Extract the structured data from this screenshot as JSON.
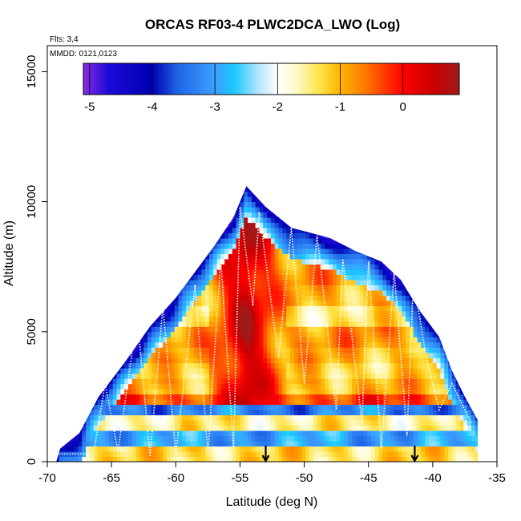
{
  "chart_data": {
    "type": "heatmap",
    "title": "ORCAS RF03-4 PLWC2DCA_LWO (Log)",
    "subtitle_flights": "Flts: 3,4",
    "subtitle_dates": "MMDD: 0121,0123",
    "xlabel": "Latitude (deg N)",
    "ylabel": "Altitude (m)",
    "xlim": [
      -70,
      -35
    ],
    "ylim": [
      0,
      16000
    ],
    "x_ticks": [
      -70,
      -65,
      -60,
      -55,
      -50,
      -45,
      -40,
      -35
    ],
    "y_ticks": [
      0,
      5000,
      10000,
      15000
    ],
    "colorbar": {
      "range": [
        -5.1,
        0.9
      ],
      "ticks": [
        -5,
        -4,
        -3,
        -2,
        -1,
        0
      ],
      "stops": [
        {
          "v": -5.1,
          "c": "#8a2be2"
        },
        {
          "v": -4.7,
          "c": "#1a0ad8"
        },
        {
          "v": -4.0,
          "c": "#0000b0"
        },
        {
          "v": -3.6,
          "c": "#1e64e6"
        },
        {
          "v": -3.0,
          "c": "#3ca0ff"
        },
        {
          "v": -2.7,
          "c": "#19c8ff"
        },
        {
          "v": -2.3,
          "c": "#b4e6ff"
        },
        {
          "v": -2.0,
          "c": "#ffffff"
        },
        {
          "v": -1.7,
          "c": "#fffac8"
        },
        {
          "v": -1.3,
          "c": "#ffe140"
        },
        {
          "v": -1.0,
          "c": "#ffb400"
        },
        {
          "v": -0.6,
          "c": "#ff7800"
        },
        {
          "v": 0.0,
          "c": "#ff0000"
        },
        {
          "v": 0.5,
          "c": "#c80000"
        },
        {
          "v": 0.9,
          "c": "#a01a1a"
        }
      ]
    },
    "envelope": [
      [
        -69.3,
        0
      ],
      [
        -69,
        500
      ],
      [
        -67.5,
        1100
      ],
      [
        -66,
        2500
      ],
      [
        -64,
        3800
      ],
      [
        -62,
        5200
      ],
      [
        -60,
        6300
      ],
      [
        -58.5,
        7300
      ],
      [
        -57,
        8300
      ],
      [
        -55.5,
        9400
      ],
      [
        -54.5,
        10600
      ],
      [
        -53,
        9800
      ],
      [
        -51,
        9000
      ],
      [
        -48,
        8600
      ],
      [
        -46,
        8100
      ],
      [
        -44,
        7700
      ],
      [
        -42.5,
        7000
      ],
      [
        -41,
        5800
      ],
      [
        -39.5,
        4800
      ],
      [
        -38.5,
        3500
      ],
      [
        -37.5,
        2500
      ],
      [
        -36.5,
        1600
      ],
      [
        -36.5,
        0
      ]
    ],
    "bands": [
      {
        "y": [
          0,
          700
        ],
        "base": -1.3
      },
      {
        "y": [
          700,
          1300
        ],
        "base": -3.0
      },
      {
        "y": [
          1300,
          1900
        ],
        "base": -1.5
      },
      {
        "y": [
          1900,
          2300
        ],
        "base": -3.3
      },
      {
        "y": [
          2300,
          2700
        ],
        "base": -0.3
      },
      {
        "y": [
          2700,
          3200
        ],
        "base": -1.0
      },
      {
        "y": [
          3200,
          3800
        ],
        "base": -1.2
      },
      {
        "y": [
          3800,
          4400
        ],
        "base": -1.0
      },
      {
        "y": [
          4400,
          5200
        ],
        "base": -0.8
      },
      {
        "y": [
          5200,
          6000
        ],
        "base": -1.4
      },
      {
        "y": [
          6000,
          6800
        ],
        "base": -1.0
      },
      {
        "y": [
          6800,
          7600
        ],
        "base": -0.8
      },
      {
        "y": [
          7600,
          8400
        ],
        "base": -0.7
      },
      {
        "y": [
          8400,
          9200
        ],
        "base": -1.6
      },
      {
        "y": [
          9200,
          10000
        ],
        "base": -1.2
      },
      {
        "y": [
          10000,
          10700
        ],
        "base": -0.9
      }
    ],
    "core": {
      "x": -54.5,
      "width": 1.5,
      "peak": 0.6
    },
    "flight_track": [
      [
        -69.5,
        300
      ],
      [
        -67,
        300
      ],
      [
        -66.5,
        0
      ],
      [
        -66,
        1500
      ],
      [
        -65.5,
        3000
      ],
      [
        -64.5,
        400
      ],
      [
        -63,
        5600
      ],
      [
        -62,
        200
      ],
      [
        -61,
        6000
      ],
      [
        -60,
        300
      ],
      [
        -58.5,
        6800
      ],
      [
        -57.5,
        300
      ],
      [
        -56.5,
        7800
      ],
      [
        -55.5,
        500
      ],
      [
        -55,
        9800
      ],
      [
        -54,
        6000
      ],
      [
        -53.5,
        9600
      ],
      [
        -52,
        4000
      ],
      [
        -51,
        9000
      ],
      [
        -50,
        3000
      ],
      [
        -49,
        8700
      ],
      [
        -47.5,
        2000
      ],
      [
        -47,
        7800
      ],
      [
        -45.5,
        1500
      ],
      [
        -45,
        7700
      ],
      [
        -44,
        500
      ],
      [
        -43,
        7300
      ],
      [
        -42,
        1000
      ],
      [
        -41.5,
        7000
      ],
      [
        -40.5,
        4000
      ],
      [
        -39.5,
        2000
      ],
      [
        -38.5,
        3000
      ],
      [
        -37,
        1500
      ]
    ],
    "markers": [
      {
        "x": -53,
        "type": "down-arrow"
      },
      {
        "x": -41.4,
        "type": "down-arrow"
      }
    ]
  }
}
